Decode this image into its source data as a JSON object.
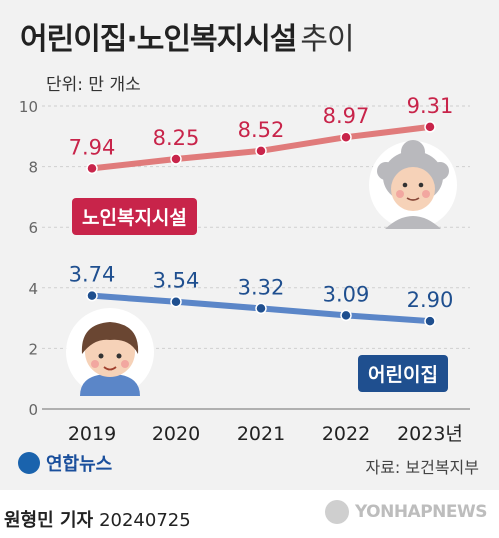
{
  "header": {
    "title": "어린이집·노인복지시설",
    "title_suffix": "추이",
    "unit": "단위: 만 개소"
  },
  "chart_data": {
    "type": "line",
    "categories": [
      "2019",
      "2020",
      "2021",
      "2022",
      "2023년"
    ],
    "ylim": [
      0,
      10
    ],
    "yticks": [
      "0",
      "2",
      "4",
      "6",
      "8",
      "10"
    ],
    "grid": true,
    "series": [
      {
        "name": "노인복지시설",
        "values": [
          7.94,
          8.25,
          8.52,
          8.97,
          9.31
        ],
        "labels": [
          "7.94",
          "8.25",
          "8.52",
          "8.97",
          "9.31"
        ],
        "color": "#e07b7b",
        "point_color": "#c8244a",
        "label_color": "#c8244a",
        "badge_color": "#c8244a"
      },
      {
        "name": "어린이집",
        "values": [
          3.74,
          3.54,
          3.32,
          3.09,
          2.9
        ],
        "labels": [
          "3.74",
          "3.54",
          "3.32",
          "3.09",
          "2.90"
        ],
        "color": "#5b86c8",
        "point_color": "#1f4f8f",
        "label_color": "#1f4f8f",
        "badge_color": "#1f4f8f"
      }
    ]
  },
  "footer": {
    "logo": "연합뉴스",
    "source": "자료: 보건복지부",
    "author": "원형민 기자",
    "date": "20240725",
    "watermark": "YONHAPNEWS"
  },
  "icons": {
    "elderly": "elderly-woman-icon",
    "child": "child-boy-icon"
  }
}
